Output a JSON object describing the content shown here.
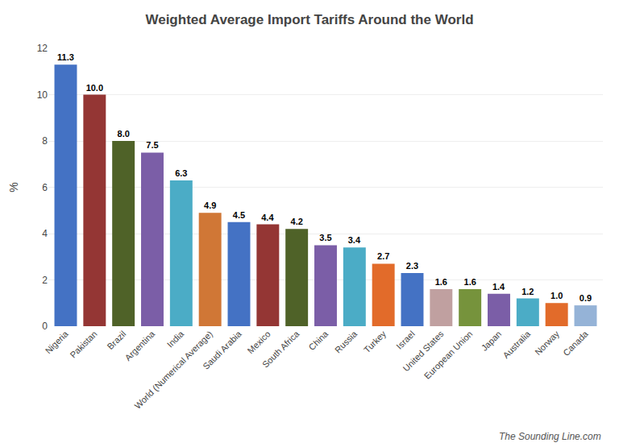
{
  "chart_data": {
    "type": "bar",
    "title": "Weighted Average Import Tariffs Around the World",
    "ylabel": "%",
    "categories": [
      "Nigeria",
      "Pakistan",
      "Brazil",
      "Argentina",
      "India",
      "World (Numerical Average)",
      "Saudi Arabia",
      "Mexico",
      "South Africa",
      "China",
      "Russia",
      "Turkey",
      "Israel",
      "United States",
      "European Union",
      "Japan",
      "Australia",
      "Norway",
      "Canada"
    ],
    "values": [
      11.3,
      10.0,
      8.0,
      7.5,
      6.3,
      4.9,
      4.5,
      4.4,
      4.2,
      3.5,
      3.4,
      2.7,
      2.3,
      1.6,
      1.6,
      1.4,
      1.2,
      1.0,
      0.9
    ],
    "value_labels": [
      "11.3",
      "10.0",
      "8.0",
      "7.5",
      "6.3",
      "4.9",
      "4.5",
      "4.4",
      "4.2",
      "3.5",
      "3.4",
      "2.7",
      "2.3",
      "1.6",
      "1.6",
      "1.4",
      "1.2",
      "1.0",
      "0.9"
    ],
    "colors": [
      "#4472C4",
      "#943634",
      "#4F6228",
      "#7B5EA7",
      "#4BACC6",
      "#D07736",
      "#4472C4",
      "#943634",
      "#4F6228",
      "#7B5EA7",
      "#4BACC6",
      "#E26B2A",
      "#4472C4",
      "#C0A0A0",
      "#76933C",
      "#7B5EA7",
      "#4BACC6",
      "#E26B2A",
      "#95B3D7"
    ],
    "ylim": [
      0,
      12
    ],
    "yticks": [
      0,
      2,
      4,
      6,
      8,
      10,
      12
    ],
    "grid": true,
    "data_labels": true,
    "annotations": [
      "The Sounding Line.com"
    ]
  }
}
